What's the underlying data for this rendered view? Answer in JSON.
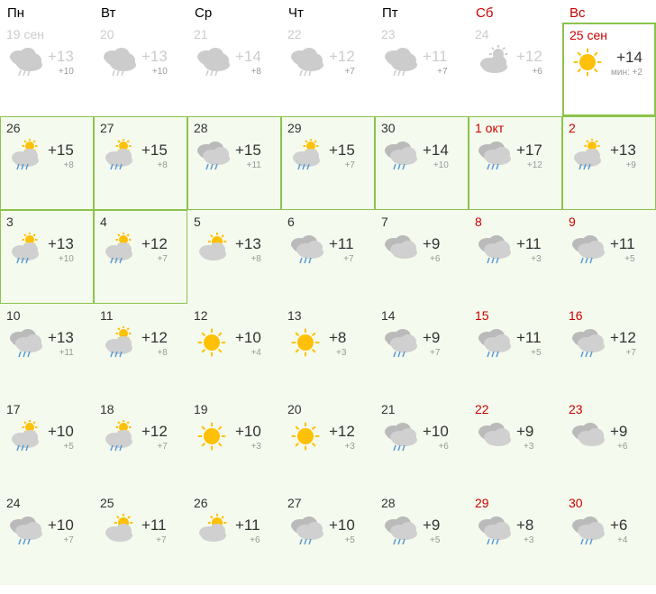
{
  "headers": [
    "Пн",
    "Вт",
    "Ср",
    "Чт",
    "Пт",
    "Сб",
    "Вс"
  ],
  "min_label": "мин:",
  "colors": {
    "text": "#333333",
    "muted": "#cccccc",
    "low": "#999999",
    "weekend": "#cc0000",
    "green": "#8bc34a",
    "near_bg": "#f4faed",
    "cloud": "#d0d0d0",
    "cloud_dark": "#bababa",
    "rain": "#5a9bd5",
    "sun": "#ffc107"
  },
  "rows": [
    [
      {
        "date": "19 сен",
        "hi": "+13",
        "lo": "+10",
        "icon": "rain",
        "past": true
      },
      {
        "date": "20",
        "hi": "+13",
        "lo": "+10",
        "icon": "rain",
        "past": true
      },
      {
        "date": "21",
        "hi": "+14",
        "lo": "+8",
        "icon": "rain",
        "past": true
      },
      {
        "date": "22",
        "hi": "+12",
        "lo": "+7",
        "icon": "rain",
        "past": true
      },
      {
        "date": "23",
        "hi": "+11",
        "lo": "+7",
        "icon": "rain",
        "past": true
      },
      {
        "date": "24",
        "hi": "+12",
        "lo": "+6",
        "icon": "partly",
        "past": true
      },
      {
        "date": "25 сен",
        "hi": "+14",
        "lo": "+2",
        "icon": "sunny",
        "current": true,
        "weekend": true,
        "show_min": true
      }
    ],
    [
      {
        "date": "26",
        "hi": "+15",
        "lo": "+8",
        "icon": "sun_rain",
        "near": true,
        "gb": true
      },
      {
        "date": "27",
        "hi": "+15",
        "lo": "+8",
        "icon": "sun_rain",
        "near": true,
        "gb": true
      },
      {
        "date": "28",
        "hi": "+15",
        "lo": "+11",
        "icon": "cloud_rain",
        "near": true,
        "gb": true
      },
      {
        "date": "29",
        "hi": "+15",
        "lo": "+7",
        "icon": "sun_rain",
        "near": true,
        "gb": true
      },
      {
        "date": "30",
        "hi": "+14",
        "lo": "+10",
        "icon": "cloud_rain",
        "near": true,
        "gb": true
      },
      {
        "date": "1 окт",
        "hi": "+17",
        "lo": "+12",
        "icon": "cloud_rain",
        "near": true,
        "gb": true,
        "weekend": true
      },
      {
        "date": "2",
        "hi": "+13",
        "lo": "+9",
        "icon": "sun_rain",
        "near": true,
        "gb": true,
        "weekend": true
      }
    ],
    [
      {
        "date": "3",
        "hi": "+13",
        "lo": "+10",
        "icon": "sun_rain",
        "near": true,
        "gb": true
      },
      {
        "date": "4",
        "hi": "+12",
        "lo": "+7",
        "icon": "sun_rain",
        "near": true,
        "gb": true
      },
      {
        "date": "5",
        "hi": "+13",
        "lo": "+8",
        "icon": "partly",
        "near": true
      },
      {
        "date": "6",
        "hi": "+11",
        "lo": "+7",
        "icon": "cloud_rain",
        "near": true
      },
      {
        "date": "7",
        "hi": "+9",
        "lo": "+6",
        "icon": "cloudy",
        "near": true
      },
      {
        "date": "8",
        "hi": "+11",
        "lo": "+3",
        "icon": "cloud_rain",
        "near": true,
        "weekend": true
      },
      {
        "date": "9",
        "hi": "+11",
        "lo": "+5",
        "icon": "cloud_rain",
        "near": true,
        "weekend": true
      }
    ],
    [
      {
        "date": "10",
        "hi": "+13",
        "lo": "+11",
        "icon": "cloud_rain",
        "near": true
      },
      {
        "date": "11",
        "hi": "+12",
        "lo": "+8",
        "icon": "sun_rain",
        "near": true
      },
      {
        "date": "12",
        "hi": "+10",
        "lo": "+4",
        "icon": "sunny",
        "near": true
      },
      {
        "date": "13",
        "hi": "+8",
        "lo": "+3",
        "icon": "sunny",
        "near": true
      },
      {
        "date": "14",
        "hi": "+9",
        "lo": "+7",
        "icon": "cloud_rain",
        "near": true
      },
      {
        "date": "15",
        "hi": "+11",
        "lo": "+5",
        "icon": "cloud_rain",
        "near": true,
        "weekend": true
      },
      {
        "date": "16",
        "hi": "+12",
        "lo": "+7",
        "icon": "cloud_rain",
        "near": true,
        "weekend": true
      }
    ],
    [
      {
        "date": "17",
        "hi": "+10",
        "lo": "+5",
        "icon": "sun_rain",
        "near": true
      },
      {
        "date": "18",
        "hi": "+12",
        "lo": "+7",
        "icon": "sun_rain",
        "near": true
      },
      {
        "date": "19",
        "hi": "+10",
        "lo": "+3",
        "icon": "sunny",
        "near": true
      },
      {
        "date": "20",
        "hi": "+12",
        "lo": "+3",
        "icon": "sunny",
        "near": true
      },
      {
        "date": "21",
        "hi": "+10",
        "lo": "+6",
        "icon": "cloud_rain",
        "near": true
      },
      {
        "date": "22",
        "hi": "+9",
        "lo": "+3",
        "icon": "cloudy",
        "near": true,
        "weekend": true
      },
      {
        "date": "23",
        "hi": "+9",
        "lo": "+6",
        "icon": "cloudy",
        "near": true,
        "weekend": true
      }
    ],
    [
      {
        "date": "24",
        "hi": "+10",
        "lo": "+7",
        "icon": "cloud_rain",
        "near": true
      },
      {
        "date": "25",
        "hi": "+11",
        "lo": "+7",
        "icon": "partly",
        "near": true
      },
      {
        "date": "26",
        "hi": "+11",
        "lo": "+6",
        "icon": "partly",
        "near": true
      },
      {
        "date": "27",
        "hi": "+10",
        "lo": "+5",
        "icon": "cloud_rain",
        "near": true
      },
      {
        "date": "28",
        "hi": "+9",
        "lo": "+5",
        "icon": "cloud_rain",
        "near": true
      },
      {
        "date": "29",
        "hi": "+8",
        "lo": "+3",
        "icon": "cloud_rain",
        "near": true,
        "weekend": true
      },
      {
        "date": "30",
        "hi": "+6",
        "lo": "+4",
        "icon": "cloud_rain",
        "near": true,
        "weekend": true
      }
    ]
  ]
}
